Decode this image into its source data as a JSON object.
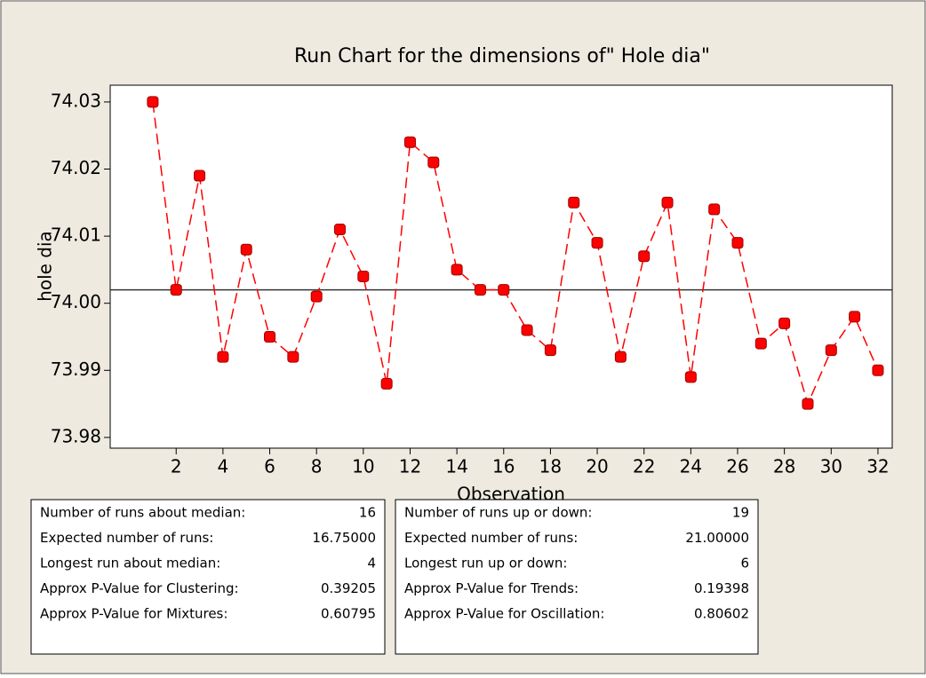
{
  "chart_data": {
    "type": "line",
    "title": "Run Chart  for the dimensions of\" Hole dia\"",
    "xlabel": "Observation",
    "ylabel": "hole dia",
    "x": [
      1,
      2,
      3,
      4,
      5,
      6,
      7,
      8,
      9,
      10,
      11,
      12,
      13,
      14,
      15,
      16,
      17,
      18,
      19,
      20,
      21,
      22,
      23,
      24,
      25,
      26,
      27,
      28,
      29,
      30,
      31,
      32
    ],
    "values": [
      74.03,
      74.002,
      74.019,
      73.992,
      74.008,
      73.995,
      73.992,
      74.001,
      74.011,
      74.004,
      73.988,
      74.024,
      74.021,
      74.005,
      74.002,
      74.002,
      73.996,
      73.993,
      74.015,
      74.009,
      73.992,
      74.007,
      74.015,
      73.989,
      74.014,
      74.009,
      73.994,
      73.997,
      73.985,
      73.993,
      73.998,
      73.99
    ],
    "color": "#ff0000",
    "reference_line": 74.002,
    "xlim": [
      -0.82,
      32.61
    ],
    "ylim": [
      73.9784,
      74.0325
    ],
    "xticks": [
      2,
      4,
      6,
      8,
      10,
      12,
      14,
      16,
      18,
      20,
      22,
      24,
      26,
      28,
      30,
      32
    ],
    "yticks": [
      74.03,
      74.02,
      74.01,
      {
        "value": 74,
        "label": "74.00"
      },
      73.99,
      73.98
    ]
  },
  "stats": [
    {
      "rows": [
        [
          "Number of runs about median:",
          "16"
        ],
        [
          "Expected number of runs:",
          "16.75000"
        ],
        [
          "Longest run about median:",
          "4"
        ],
        [
          "Approx P-Value for Clustering:",
          "0.39205"
        ],
        [
          "Approx P-Value for Mixtures:",
          "0.60795"
        ]
      ]
    },
    {
      "rows": [
        [
          "Number of runs up or down:",
          "19"
        ],
        [
          "Expected number of runs:",
          "21.00000"
        ],
        [
          "Longest run up or down:",
          "6"
        ],
        [
          "Approx P-Value for Trends:",
          "0.19398"
        ],
        [
          "Approx P-Value for Oscillation:",
          "0.80602"
        ]
      ]
    }
  ]
}
